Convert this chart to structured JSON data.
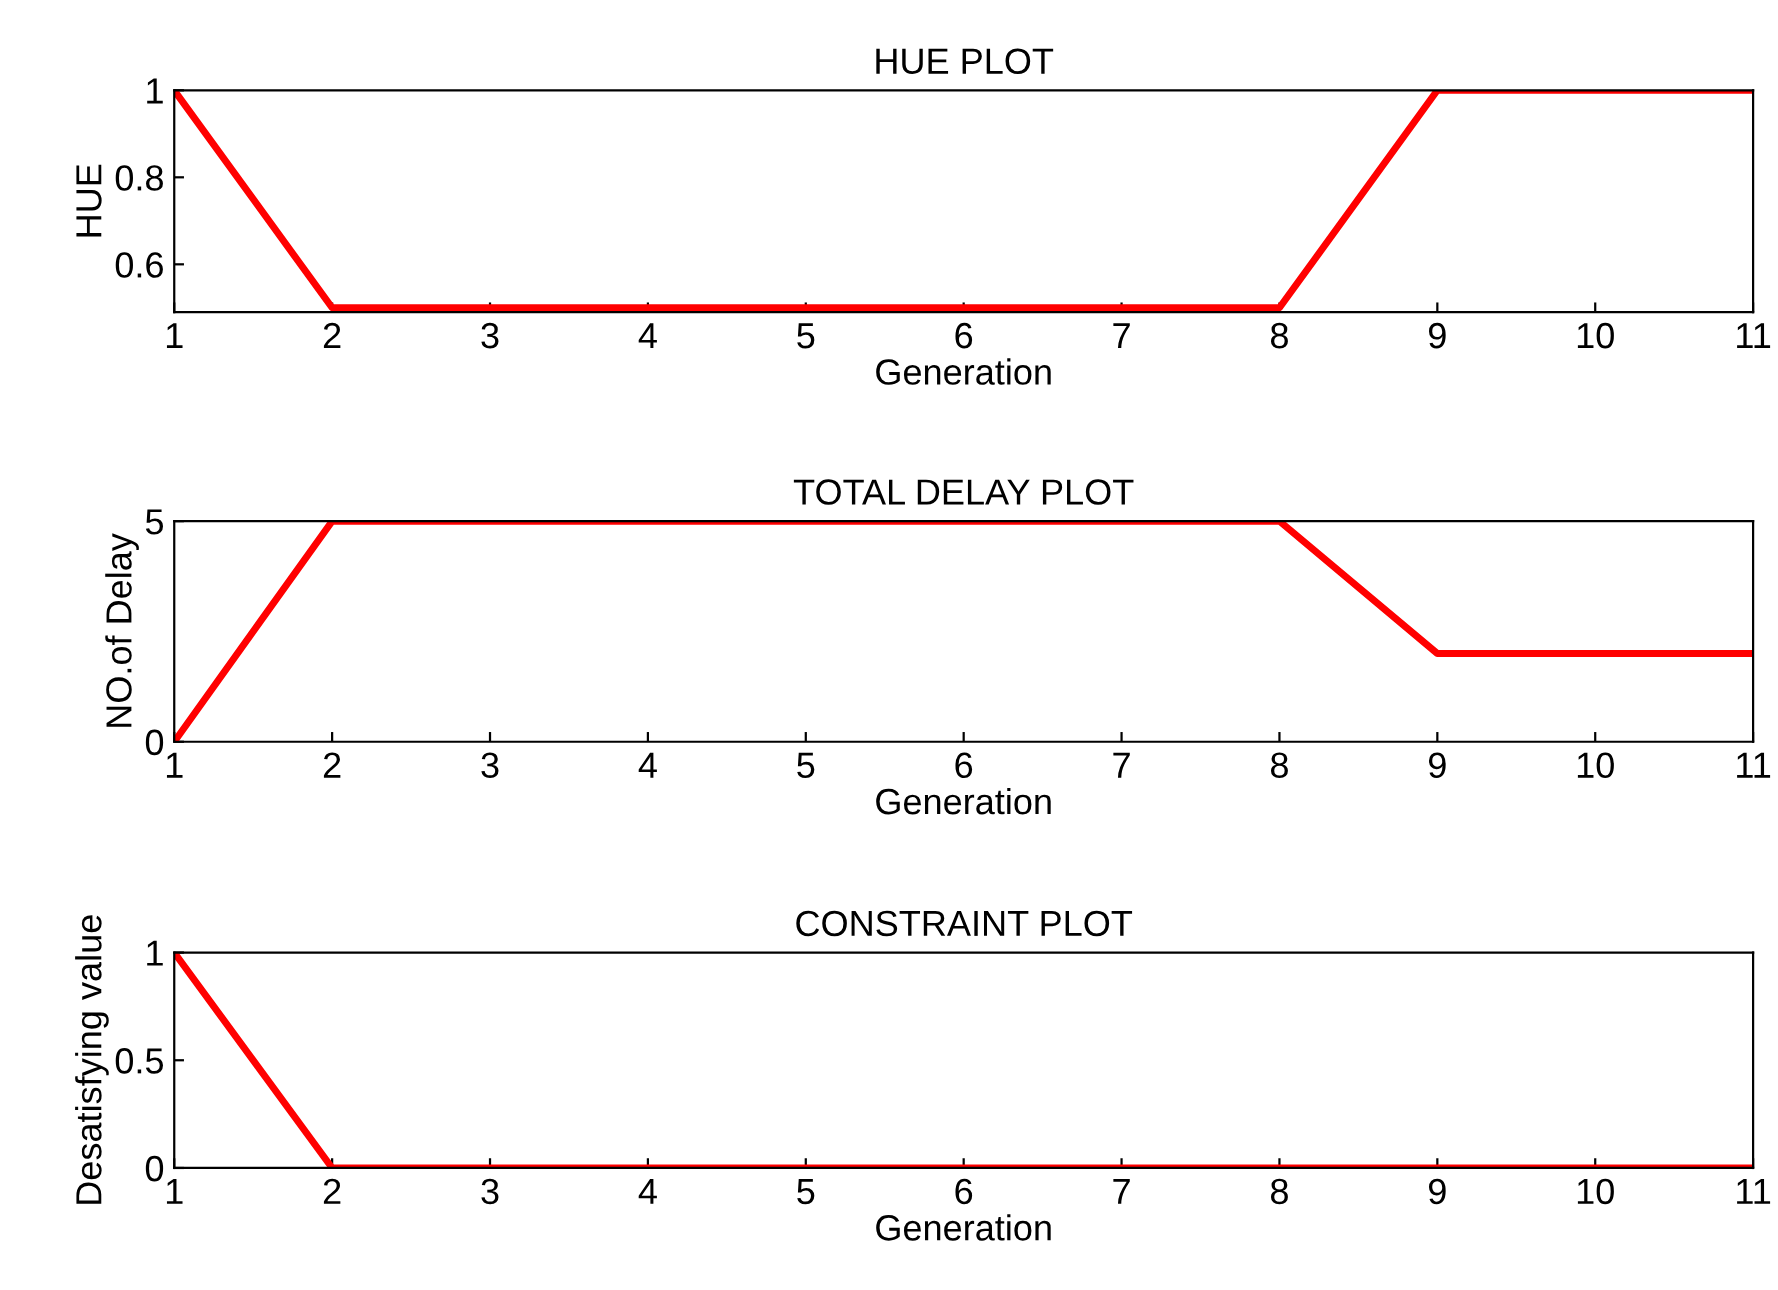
{
  "chart_data": [
    {
      "type": "line",
      "title": "HUE PLOT",
      "xlabel": "Generation",
      "ylabel": "HUE",
      "x": [
        1,
        2,
        3,
        4,
        5,
        6,
        7,
        8,
        9,
        10,
        11
      ],
      "series": [
        {
          "color": "#ff0000",
          "values": [
            1,
            0.5,
            0.5,
            0.5,
            0.5,
            0.5,
            0.5,
            0.5,
            1,
            1,
            1
          ]
        }
      ],
      "xlim": [
        1,
        11
      ],
      "xticks": [
        1,
        2,
        3,
        4,
        5,
        6,
        7,
        8,
        9,
        10,
        11
      ],
      "ylim": [
        0.49,
        1
      ],
      "yticks": [
        0.6,
        0.8,
        1
      ]
    },
    {
      "type": "line",
      "title": "TOTAL DELAY PLOT",
      "xlabel": "Generation",
      "ylabel": "NO.of Delay",
      "x": [
        1,
        2,
        3,
        4,
        5,
        6,
        7,
        8,
        9,
        10,
        11
      ],
      "series": [
        {
          "color": "#ff0000",
          "values": [
            0,
            5,
            5,
            5,
            5,
            5,
            5,
            5,
            2,
            2,
            2
          ]
        }
      ],
      "xlim": [
        1,
        11
      ],
      "xticks": [
        1,
        2,
        3,
        4,
        5,
        6,
        7,
        8,
        9,
        10,
        11
      ],
      "ylim": [
        0,
        5
      ],
      "yticks": [
        0,
        5
      ]
    },
    {
      "type": "line",
      "title": "CONSTRAINT PLOT",
      "xlabel": "Generation",
      "ylabel": "Desatisfying value",
      "x": [
        1,
        2,
        3,
        4,
        5,
        6,
        7,
        8,
        9,
        10,
        11
      ],
      "series": [
        {
          "color": "#ff0000",
          "values": [
            1,
            0,
            0,
            0,
            0,
            0,
            0,
            0,
            0,
            0,
            0
          ]
        }
      ],
      "xlim": [
        1,
        11
      ],
      "xticks": [
        1,
        2,
        3,
        4,
        5,
        6,
        7,
        8,
        9,
        10,
        11
      ],
      "ylim": [
        0,
        1
      ],
      "yticks": [
        0,
        0.5,
        1
      ]
    }
  ]
}
